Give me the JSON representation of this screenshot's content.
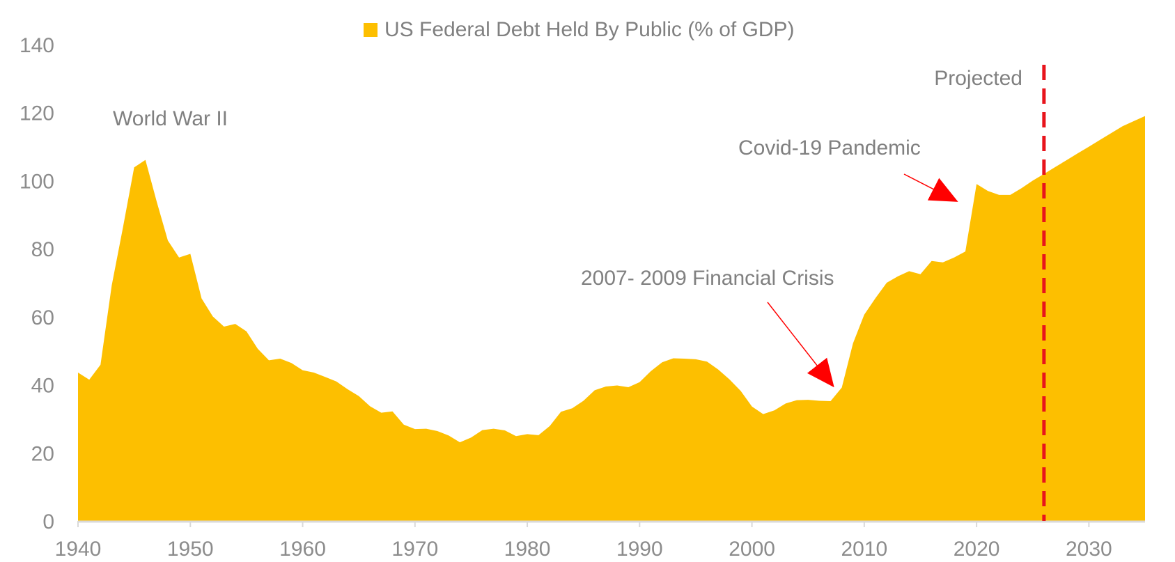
{
  "chart_data": {
    "type": "area",
    "title": "",
    "xlabel": "",
    "ylabel": "",
    "legend": {
      "position": "top-center",
      "entries": [
        {
          "name": "US Federal Debt Held By Public (% of GDP)",
          "color": "#FDBF00"
        }
      ]
    },
    "xlim": [
      1940,
      2035
    ],
    "ylim": [
      0,
      140
    ],
    "x_ticks": [
      1940,
      1950,
      1960,
      1970,
      1980,
      1990,
      2000,
      2010,
      2020,
      2030
    ],
    "y_ticks": [
      0,
      20,
      40,
      60,
      80,
      100,
      120,
      140
    ],
    "grid": false,
    "series": [
      {
        "name": "US Federal Debt Held By Public (% of GDP)",
        "color": "#FDBF00",
        "x": [
          1940,
          1941,
          1942,
          1943,
          1944,
          1945,
          1946,
          1947,
          1948,
          1949,
          1950,
          1951,
          1952,
          1953,
          1954,
          1955,
          1956,
          1957,
          1958,
          1959,
          1960,
          1961,
          1962,
          1963,
          1964,
          1965,
          1966,
          1967,
          1968,
          1969,
          1970,
          1971,
          1972,
          1973,
          1974,
          1975,
          1976,
          1977,
          1978,
          1979,
          1980,
          1981,
          1982,
          1983,
          1984,
          1985,
          1986,
          1987,
          1988,
          1989,
          1990,
          1991,
          1992,
          1993,
          1994,
          1995,
          1996,
          1997,
          1998,
          1999,
          2000,
          2001,
          2002,
          2003,
          2004,
          2005,
          2006,
          2007,
          2008,
          2009,
          2010,
          2011,
          2012,
          2013,
          2014,
          2015,
          2016,
          2017,
          2018,
          2019,
          2020,
          2021,
          2022,
          2023,
          2024,
          2025,
          2026,
          2027,
          2028,
          2029,
          2030,
          2031,
          2032,
          2033,
          2034,
          2035
        ],
        "values": [
          43.6,
          41.5,
          45.9,
          69.2,
          86.2,
          103.9,
          106.1,
          93.9,
          82.4,
          77.4,
          78.5,
          65.4,
          60.1,
          57.1,
          57.9,
          55.7,
          50.6,
          47.2,
          47.7,
          46.4,
          44.3,
          43.6,
          42.3,
          41.0,
          38.7,
          36.7,
          33.7,
          31.8,
          32.2,
          28.3,
          27.0,
          27.1,
          26.4,
          25.1,
          23.1,
          24.5,
          26.7,
          27.1,
          26.6,
          24.9,
          25.5,
          25.2,
          27.9,
          32.1,
          33.1,
          35.3,
          38.4,
          39.5,
          39.8,
          39.3,
          40.8,
          44.0,
          46.6,
          47.8,
          47.7,
          47.5,
          46.8,
          44.5,
          41.6,
          38.2,
          33.6,
          31.4,
          32.5,
          34.5,
          35.5,
          35.6,
          35.3,
          35.2,
          39.2,
          52.2,
          60.6,
          65.5,
          70.0,
          71.9,
          73.4,
          72.5,
          76.4,
          76.0,
          77.4,
          79.2,
          99.0,
          97.0,
          95.8,
          95.8,
          97.8,
          100.0,
          102.0,
          104.0,
          106.0,
          108.0,
          110.0,
          112.0,
          114.0,
          116.0,
          117.5,
          119.0
        ]
      }
    ],
    "reference_lines": [
      {
        "x": 2026,
        "color": "#E8141C",
        "style": "dashed",
        "label": "Projected"
      }
    ],
    "annotations": [
      {
        "text": "World War II"
      },
      {
        "text": "Covid-19 Pandemic",
        "arrow_target": [
          2018,
          96
        ],
        "arrow_color": "#FF0000"
      },
      {
        "text": "2007- 2009 Financial Crisis",
        "arrow_target": [
          2007,
          41
        ],
        "arrow_color": "#FF0000"
      }
    ],
    "axis_color": "#d9d9d9"
  }
}
